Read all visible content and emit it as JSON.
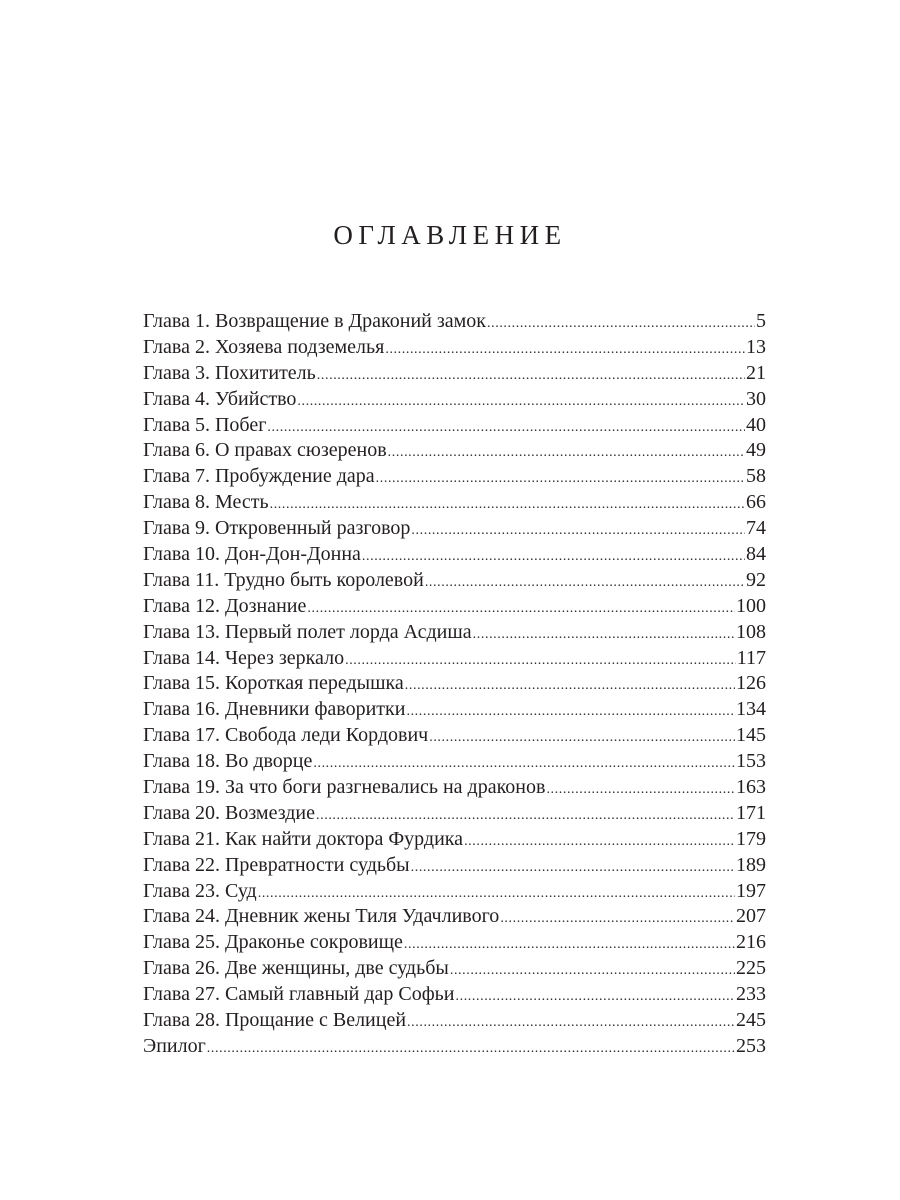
{
  "title": "ОГЛАВЛЕНИЕ",
  "entries": [
    {
      "label": "Глава 1. Возвращение в Драконий замок",
      "page": "5"
    },
    {
      "label": "Глава 2. Хозяева подземелья",
      "page": "13"
    },
    {
      "label": "Глава 3. Похититель",
      "page": "21"
    },
    {
      "label": "Глава 4. Убийство",
      "page": "30"
    },
    {
      "label": "Глава 5. Побег",
      "page": "40"
    },
    {
      "label": "Глава 6. О правах сюзеренов",
      "page": "49"
    },
    {
      "label": "Глава 7. Пробуждение дара",
      "page": "58"
    },
    {
      "label": "Глава 8. Месть",
      "page": "66"
    },
    {
      "label": "Глава 9. Откровенный разговор",
      "page": "74"
    },
    {
      "label": "Глава 10. Дон-Дон-Донна",
      "page": "84"
    },
    {
      "label": "Глава 11. Трудно быть королевой",
      "page": "92"
    },
    {
      "label": "Глава 12. Дознание",
      "page": "100"
    },
    {
      "label": "Глава 13. Первый полет лорда Асдиша",
      "page": "108"
    },
    {
      "label": "Глава 14. Через зеркало",
      "page": "117"
    },
    {
      "label": "Глава 15. Короткая передышка",
      "page": "126"
    },
    {
      "label": "Глава 16. Дневники фаворитки",
      "page": "134"
    },
    {
      "label": "Глава 17. Свобода леди Кордович",
      "page": "145"
    },
    {
      "label": "Глава 18. Во дворце",
      "page": "153"
    },
    {
      "label": "Глава 19. За что боги разгневались на драконов",
      "page": "163"
    },
    {
      "label": "Глава 20. Возмездие",
      "page": "171"
    },
    {
      "label": "Глава 21. Как найти доктора Фурдика",
      "page": "179"
    },
    {
      "label": "Глава 22. Превратности судьбы",
      "page": "189"
    },
    {
      "label": "Глава 23. Суд",
      "page": "197"
    },
    {
      "label": "Глава 24. Дневник жены Тиля Удачливого",
      "page": "207"
    },
    {
      "label": "Глава 25. Драконье сокровище",
      "page": "216"
    },
    {
      "label": "Глава 26. Две женщины, две судьбы",
      "page": "225"
    },
    {
      "label": "Глава 27. Самый главный дар Софьи",
      "page": "233"
    },
    {
      "label": "Глава 28. Прощание с Велицей",
      "page": "245"
    },
    {
      "label": "Эпилог",
      "page": "253"
    }
  ]
}
